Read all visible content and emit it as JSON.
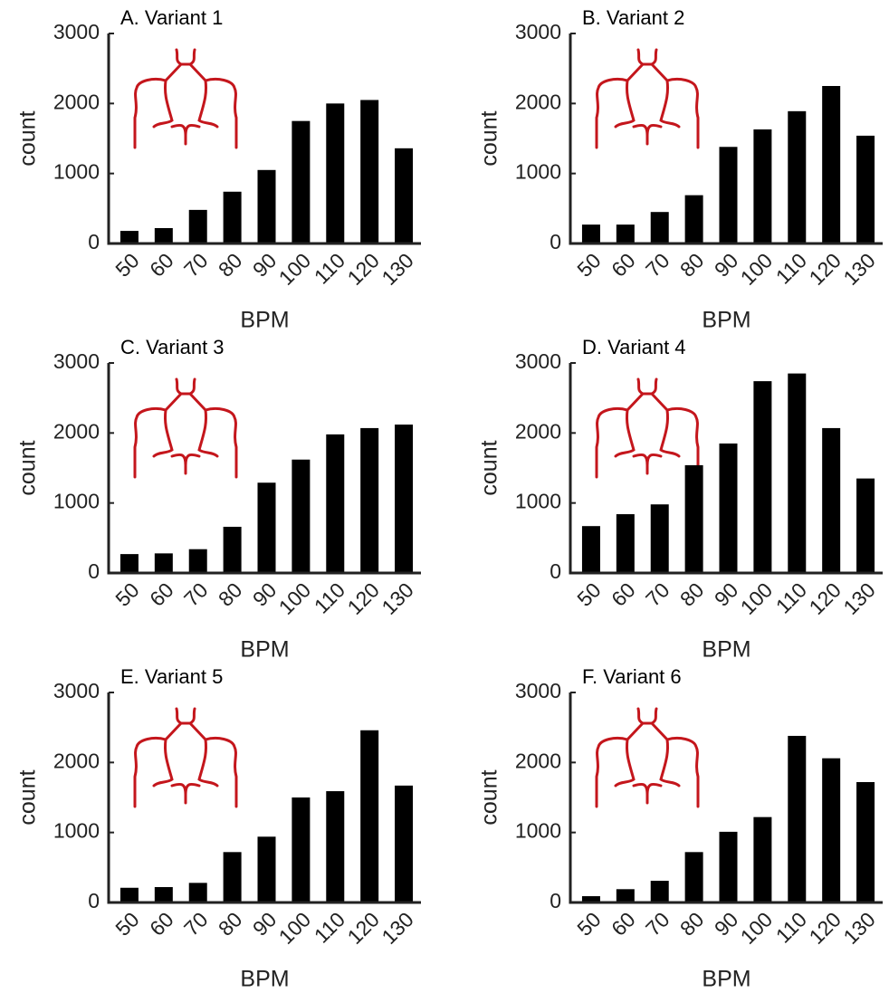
{
  "chart_data": [
    {
      "type": "bar",
      "title": "A. Variant 1",
      "xlabel": "BPM",
      "ylabel": "count",
      "categories": [
        50,
        60,
        70,
        80,
        90,
        100,
        110,
        120,
        130
      ],
      "values": [
        180,
        220,
        480,
        740,
        1050,
        1750,
        2000,
        2050,
        1360
      ],
      "color": "#000000",
      "ylim": [
        0,
        3000
      ],
      "yticks": [
        0,
        1000,
        2000,
        3000
      ]
    },
    {
      "type": "bar",
      "title": "B. Variant 2",
      "xlabel": "BPM",
      "ylabel": "count",
      "categories": [
        50,
        60,
        70,
        80,
        90,
        100,
        110,
        120,
        130
      ],
      "values": [
        270,
        270,
        450,
        690,
        1380,
        1630,
        1890,
        2250,
        1540
      ],
      "color": "#000000",
      "ylim": [
        0,
        3000
      ],
      "yticks": [
        0,
        1000,
        2000,
        3000
      ]
    },
    {
      "type": "bar",
      "title": "C. Variant 3",
      "xlabel": "BPM",
      "ylabel": "count",
      "categories": [
        50,
        60,
        70,
        80,
        90,
        100,
        110,
        120,
        130
      ],
      "values": [
        270,
        280,
        340,
        660,
        1290,
        1620,
        1980,
        2070,
        2120
      ],
      "color": "#000000",
      "ylim": [
        0,
        3000
      ],
      "yticks": [
        0,
        1000,
        2000,
        3000
      ]
    },
    {
      "type": "bar",
      "title": "D. Variant 4",
      "xlabel": "BPM",
      "ylabel": "count",
      "categories": [
        50,
        60,
        70,
        80,
        90,
        100,
        110,
        120,
        130
      ],
      "values": [
        670,
        840,
        980,
        1540,
        1850,
        2740,
        2850,
        2070,
        1350
      ],
      "color": "#000000",
      "ylim": [
        0,
        3000
      ],
      "yticks": [
        0,
        1000,
        2000,
        3000
      ]
    },
    {
      "type": "bar",
      "title": "E. Variant 5",
      "xlabel": "BPM",
      "ylabel": "count",
      "categories": [
        50,
        60,
        70,
        80,
        90,
        100,
        110,
        120,
        130
      ],
      "values": [
        210,
        220,
        280,
        720,
        940,
        1500,
        1590,
        2460,
        1670
      ],
      "color": "#000000",
      "ylim": [
        0,
        3000
      ],
      "yticks": [
        0,
        1000,
        2000,
        3000
      ]
    },
    {
      "type": "bar",
      "title": "F. Variant 6",
      "xlabel": "BPM",
      "ylabel": "count",
      "categories": [
        50,
        60,
        70,
        80,
        90,
        100,
        110,
        120,
        130
      ],
      "values": [
        90,
        190,
        310,
        720,
        1010,
        1220,
        2380,
        2060,
        1720
      ],
      "color": "#000000",
      "ylim": [
        0,
        3000
      ],
      "yticks": [
        0,
        1000,
        2000,
        3000
      ]
    }
  ]
}
